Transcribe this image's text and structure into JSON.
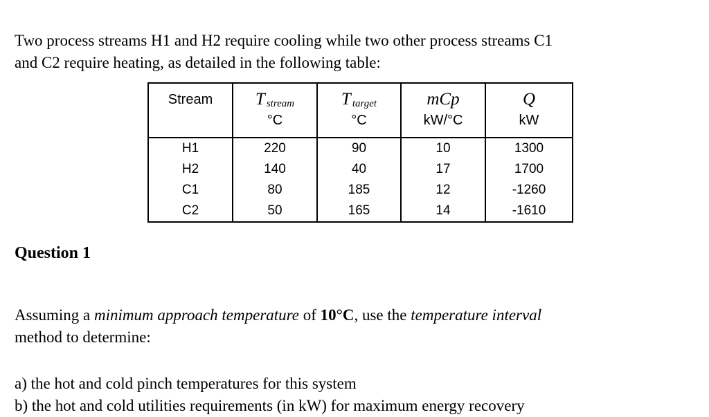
{
  "page": {
    "intro_lines": [
      "Two process streams H1 and H2 require cooling while two other process streams C1",
      "and C2 require heating, as detailed in the following table:"
    ],
    "question_heading": "Question 1",
    "assumption_segments": [
      {
        "t": "Assuming a ",
        "s": "n"
      },
      {
        "t": "minimum approach temperature",
        "s": "i"
      },
      {
        "t": " of ",
        "s": "n"
      },
      {
        "t": "10°C",
        "s": "b"
      },
      {
        "t": ", use the ",
        "s": "n"
      },
      {
        "t": "temperature interval",
        "s": "i"
      }
    ],
    "assumption_line2": "method to determine:",
    "items": [
      "a) the hot and cold pinch temperatures for this system",
      "b) the hot and cold utilities requirements (in kW) for maximum energy recovery"
    ]
  },
  "table": {
    "header": {
      "stream": "Stream",
      "t_stream": {
        "symbol": "T",
        "sub": "stream",
        "unit": "°C"
      },
      "t_target": {
        "symbol": "T",
        "sub": "target",
        "unit": "°C"
      },
      "mcp": {
        "symbol": "mCp",
        "unit": "kW/°C"
      },
      "q": {
        "symbol": "Q",
        "unit": "kW"
      }
    },
    "rows": [
      {
        "cells": [
          "H1",
          "220",
          "90",
          "10",
          "1300"
        ]
      },
      {
        "cells": [
          "H2",
          "140",
          "40",
          "17",
          "1700"
        ]
      },
      {
        "cells": [
          "C1",
          "80",
          "185",
          "12",
          "-1260"
        ]
      },
      {
        "cells": [
          "C2",
          "50",
          "165",
          "14",
          "-1610"
        ]
      }
    ]
  }
}
